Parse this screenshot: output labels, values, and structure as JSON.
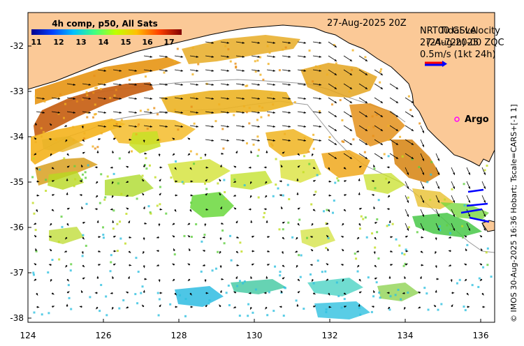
{
  "colorbar": {
    "title": "4h comp, p50, All Sats",
    "labels": [
      "11",
      "12",
      "13",
      "14",
      "15",
      "16",
      "17"
    ],
    "colors": [
      "#00008f",
      "#0040ff",
      "#00c0ff",
      "#40ff80",
      "#c0ff00",
      "#ffc000",
      "#ff4000",
      "#800000"
    ]
  },
  "date_label": "27-Aug-2025 20Z",
  "legend": {
    "line1": "NRT00 GSLA",
    "line2": "27-Aug-2025",
    "line3": "0.5m/s (1kt 24h)",
    "overlay1": "Tidal velocity",
    "overlay2": "(24-72h)",
    "overlay3": "-00 ZQC"
  },
  "argo_label": "Argo",
  "side_text": "© IMOS 30-Aug-2025 16:36 Hobart; Tscale=CARS+[-1 1]",
  "axes": {
    "lon_ticks": [
      "124",
      "126",
      "128",
      "130",
      "132",
      "134",
      "136"
    ],
    "lat_ticks": [
      "-32",
      "-33",
      "-34",
      "-35",
      "-36",
      "-37",
      "-38"
    ]
  },
  "colors": {
    "land": "#fbc997",
    "ocean": "#ffffff",
    "arrow": "#000000",
    "argo": "#ff00ff",
    "velocity_blue": "#0000ff",
    "velocity_red": "#ff0000"
  }
}
